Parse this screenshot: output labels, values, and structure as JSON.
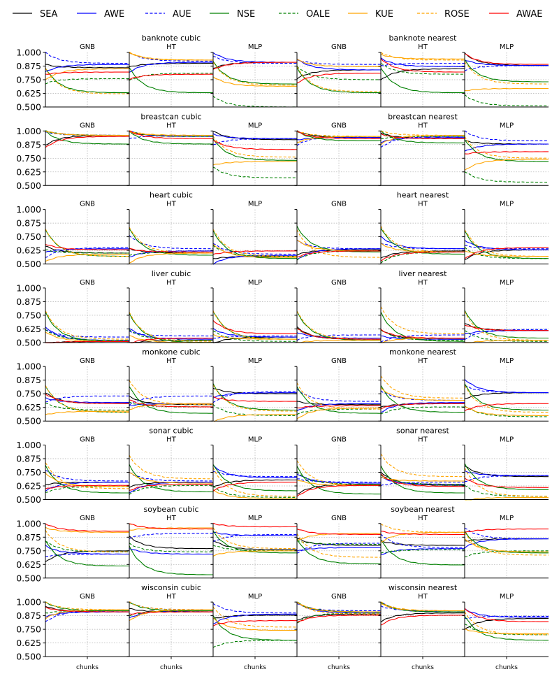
{
  "legend": [
    {
      "name": "SEA",
      "color": "#000000",
      "dash": false
    },
    {
      "name": "AWE",
      "color": "#0000ff",
      "dash": false
    },
    {
      "name": "AUE",
      "color": "#0000ff",
      "dash": true
    },
    {
      "name": "NSE",
      "color": "#008000",
      "dash": false
    },
    {
      "name": "OALE",
      "color": "#008000",
      "dash": true
    },
    {
      "name": "KUE",
      "color": "#ffa500",
      "dash": false
    },
    {
      "name": "ROSE",
      "color": "#ffa500",
      "dash": true
    },
    {
      "name": "AWAE",
      "color": "#ff0000",
      "dash": false
    }
  ],
  "chart_data": {
    "type": "line",
    "xlabel": "chunks",
    "ylim": [
      0.5,
      1.0
    ],
    "yticks": [
      "1.000",
      "0.875",
      "0.750",
      "0.625",
      "0.500"
    ],
    "classifiers": [
      "GNB",
      "HT",
      "MLP"
    ],
    "grid": true,
    "legend_position": "top",
    "groups": [
      {
        "title": "banknote cubic",
        "cells": [
          {
            "SEA": 0.86,
            "AWE": 0.89,
            "AUE": 0.9,
            "NSE": 0.63,
            "OALE": 0.76,
            "KUE": 0.85,
            "ROSE": 0.62,
            "AWAE": 0.82
          },
          {
            "SEA": 0.9,
            "AWE": 0.91,
            "AUE": 0.92,
            "NSE": 0.63,
            "OALE": 0.81,
            "KUE": 0.93,
            "ROSE": 0.93,
            "AWAE": 0.8
          },
          {
            "SEA": 0.91,
            "AWE": 0.91,
            "AUE": 0.9,
            "NSE": 0.71,
            "OALE": 0.5,
            "KUE": 0.69,
            "ROSE": 0.7,
            "AWAE": 0.91
          }
        ]
      },
      {
        "title": "banknote nearest",
        "cells": [
          {
            "SEA": 0.84,
            "AWE": 0.84,
            "AUE": 0.89,
            "NSE": 0.63,
            "OALE": 0.75,
            "KUE": 0.87,
            "ROSE": 0.64,
            "AWAE": 0.81
          },
          {
            "SEA": 0.85,
            "AWE": 0.87,
            "AUE": 0.9,
            "NSE": 0.63,
            "OALE": 0.8,
            "KUE": 0.94,
            "ROSE": 0.93,
            "AWAE": 0.82
          },
          {
            "SEA": 0.88,
            "AWE": 0.88,
            "AUE": 0.88,
            "NSE": 0.73,
            "OALE": 0.51,
            "KUE": 0.67,
            "ROSE": 0.71,
            "AWAE": 0.89
          }
        ]
      },
      {
        "title": "breastcan cubic",
        "cells": [
          {
            "SEA": 0.96,
            "AWE": 0.96,
            "AUE": 0.96,
            "NSE": 0.88,
            "OALE": 0.96,
            "KUE": 0.96,
            "ROSE": 0.96,
            "AWAE": 0.95
          },
          {
            "SEA": 0.95,
            "AWE": 0.95,
            "AUE": 0.96,
            "NSE": 0.88,
            "OALE": 0.95,
            "KUE": 0.96,
            "ROSE": 0.96,
            "AWAE": 0.93
          },
          {
            "SEA": 0.92,
            "AWE": 0.93,
            "AUE": 0.93,
            "NSE": 0.73,
            "OALE": 0.57,
            "KUE": 0.72,
            "ROSE": 0.76,
            "AWAE": 0.83
          }
        ]
      },
      {
        "title": "breastcan nearest",
        "cells": [
          {
            "SEA": 0.94,
            "AWE": 0.94,
            "AUE": 0.95,
            "NSE": 0.91,
            "OALE": 0.95,
            "KUE": 0.95,
            "ROSE": 0.95,
            "AWAE": 0.93
          },
          {
            "SEA": 0.93,
            "AWE": 0.94,
            "AUE": 0.95,
            "NSE": 0.89,
            "OALE": 0.95,
            "KUE": 0.96,
            "ROSE": 0.96,
            "AWAE": 0.93
          },
          {
            "SEA": 0.88,
            "AWE": 0.88,
            "AUE": 0.91,
            "NSE": 0.72,
            "OALE": 0.53,
            "KUE": 0.74,
            "ROSE": 0.75,
            "AWAE": 0.81
          }
        ]
      },
      {
        "title": "heart cubic",
        "cells": [
          {
            "SEA": 0.6,
            "AWE": 0.64,
            "AUE": 0.65,
            "NSE": 0.57,
            "OALE": 0.6,
            "KUE": 0.59,
            "ROSE": 0.57,
            "AWAE": 0.63
          },
          {
            "SEA": 0.6,
            "AWE": 0.62,
            "AUE": 0.64,
            "NSE": 0.58,
            "OALE": 0.61,
            "KUE": 0.6,
            "ROSE": 0.6,
            "AWAE": 0.61
          },
          {
            "SEA": 0.57,
            "AWE": 0.58,
            "AUE": 0.59,
            "NSE": 0.55,
            "OALE": 0.57,
            "KUE": 0.56,
            "ROSE": 0.57,
            "AWAE": 0.62
          }
        ]
      },
      {
        "title": "heart nearest",
        "cells": [
          {
            "SEA": 0.63,
            "AWE": 0.64,
            "AUE": 0.64,
            "NSE": 0.61,
            "OALE": 0.62,
            "KUE": 0.62,
            "ROSE": 0.56,
            "AWAE": 0.62
          },
          {
            "SEA": 0.62,
            "AWE": 0.64,
            "AUE": 0.64,
            "NSE": 0.59,
            "OALE": 0.61,
            "KUE": 0.61,
            "ROSE": 0.61,
            "AWAE": 0.61
          },
          {
            "SEA": 0.63,
            "AWE": 0.63,
            "AUE": 0.64,
            "NSE": 0.55,
            "OALE": 0.55,
            "KUE": 0.57,
            "ROSE": 0.57,
            "AWAE": 0.65
          }
        ]
      },
      {
        "title": "liver cubic",
        "cells": [
          {
            "SEA": 0.51,
            "AWE": 0.52,
            "AUE": 0.55,
            "NSE": 0.51,
            "OALE": 0.52,
            "KUE": 0.51,
            "ROSE": 0.53,
            "AWAE": 0.51
          },
          {
            "SEA": 0.52,
            "AWE": 0.53,
            "AUE": 0.56,
            "NSE": 0.5,
            "OALE": 0.52,
            "KUE": 0.5,
            "ROSE": 0.51,
            "AWAE": 0.54
          },
          {
            "SEA": 0.55,
            "AWE": 0.55,
            "AUE": 0.56,
            "NSE": 0.53,
            "OALE": 0.51,
            "KUE": 0.53,
            "ROSE": 0.53,
            "AWAE": 0.58
          }
        ]
      },
      {
        "title": "liver nearest",
        "cells": [
          {
            "SEA": 0.53,
            "AWE": 0.54,
            "AUE": 0.57,
            "NSE": 0.52,
            "OALE": 0.53,
            "KUE": 0.52,
            "ROSE": 0.53,
            "AWAE": 0.53
          },
          {
            "SEA": 0.53,
            "AWE": 0.53,
            "AUE": 0.57,
            "NSE": 0.51,
            "OALE": 0.52,
            "KUE": 0.54,
            "ROSE": 0.58,
            "AWAE": 0.54
          },
          {
            "SEA": 0.61,
            "AWE": 0.61,
            "AUE": 0.62,
            "NSE": 0.54,
            "OALE": 0.51,
            "KUE": 0.52,
            "ROSE": 0.52,
            "AWAE": 0.61
          }
        ]
      },
      {
        "title": "monkone cubic",
        "cells": [
          {
            "SEA": 0.66,
            "AWE": 0.67,
            "AUE": 0.73,
            "NSE": 0.58,
            "OALE": 0.6,
            "KUE": 0.59,
            "ROSE": 0.58,
            "AWAE": 0.66
          },
          {
            "SEA": 0.65,
            "AWE": 0.66,
            "AUE": 0.73,
            "NSE": 0.57,
            "OALE": 0.63,
            "KUE": 0.66,
            "ROSE": 0.65,
            "AWAE": 0.63
          },
          {
            "SEA": 0.75,
            "AWE": 0.76,
            "AUE": 0.77,
            "NSE": 0.6,
            "OALE": 0.55,
            "KUE": 0.56,
            "ROSE": 0.59,
            "AWAE": 0.68
          }
        ]
      },
      {
        "title": "monkone nearest",
        "cells": [
          {
            "SEA": 0.65,
            "AWE": 0.66,
            "AUE": 0.68,
            "NSE": 0.57,
            "OALE": 0.61,
            "KUE": 0.62,
            "ROSE": 0.61,
            "AWAE": 0.64
          },
          {
            "SEA": 0.66,
            "AWE": 0.67,
            "AUE": 0.69,
            "NSE": 0.58,
            "OALE": 0.63,
            "KUE": 0.69,
            "ROSE": 0.71,
            "AWAE": 0.66
          },
          {
            "SEA": 0.76,
            "AWE": 0.76,
            "AUE": 0.76,
            "NSE": 0.6,
            "OALE": 0.54,
            "KUE": 0.55,
            "ROSE": 0.58,
            "AWAE": 0.66
          }
        ]
      },
      {
        "title": "sonar cubic",
        "cells": [
          {
            "SEA": 0.66,
            "AWE": 0.66,
            "AUE": 0.67,
            "NSE": 0.56,
            "OALE": 0.62,
            "KUE": 0.62,
            "ROSE": 0.6,
            "AWAE": 0.63
          },
          {
            "SEA": 0.66,
            "AWE": 0.66,
            "AUE": 0.67,
            "NSE": 0.57,
            "OALE": 0.63,
            "KUE": 0.65,
            "ROSE": 0.69,
            "AWAE": 0.64
          },
          {
            "SEA": 0.68,
            "AWE": 0.7,
            "AUE": 0.71,
            "NSE": 0.58,
            "OALE": 0.52,
            "KUE": 0.51,
            "ROSE": 0.53,
            "AWAE": 0.66
          }
        ]
      },
      {
        "title": "sonar nearest",
        "cells": [
          {
            "SEA": 0.64,
            "AWE": 0.65,
            "AUE": 0.66,
            "NSE": 0.55,
            "OALE": 0.64,
            "KUE": 0.63,
            "ROSE": 0.63,
            "AWAE": 0.63
          },
          {
            "SEA": 0.63,
            "AWE": 0.64,
            "AUE": 0.66,
            "NSE": 0.56,
            "OALE": 0.64,
            "KUE": 0.67,
            "ROSE": 0.71,
            "AWAE": 0.62
          },
          {
            "SEA": 0.71,
            "AWE": 0.72,
            "AUE": 0.72,
            "NSE": 0.59,
            "OALE": 0.53,
            "KUE": 0.52,
            "ROSE": 0.53,
            "AWAE": 0.61
          }
        ]
      },
      {
        "title": "soybean cubic",
        "cells": [
          {
            "SEA": 0.75,
            "AWE": 0.72,
            "AUE": 0.72,
            "NSE": 0.61,
            "OALE": 0.74,
            "KUE": 0.92,
            "ROSE": 0.74,
            "AWAE": 0.93
          },
          {
            "SEA": 0.77,
            "AWE": 0.72,
            "AUE": 0.91,
            "NSE": 0.53,
            "OALE": 0.74,
            "KUE": 0.96,
            "ROSE": 0.95,
            "AWAE": 0.95
          },
          {
            "SEA": 0.76,
            "AWE": 0.89,
            "AUE": 0.9,
            "NSE": 0.73,
            "OALE": 0.75,
            "KUE": 0.75,
            "ROSE": 0.77,
            "AWAE": 0.97
          }
        ]
      },
      {
        "title": "soybean nearest",
        "cells": [
          {
            "SEA": 0.8,
            "AWE": 0.78,
            "AUE": 0.82,
            "NSE": 0.63,
            "OALE": 0.81,
            "KUE": 0.91,
            "ROSE": 0.69,
            "AWAE": 0.9
          },
          {
            "SEA": 0.8,
            "AWE": 0.77,
            "AUE": 0.78,
            "NSE": 0.62,
            "OALE": 0.76,
            "KUE": 0.92,
            "ROSE": 0.92,
            "AWAE": 0.9
          },
          {
            "SEA": 0.86,
            "AWE": 0.86,
            "AUE": 0.86,
            "NSE": 0.73,
            "OALE": 0.75,
            "KUE": 0.74,
            "ROSE": 0.71,
            "AWAE": 0.95
          }
        ]
      },
      {
        "title": "wisconsin cubic",
        "cells": [
          {
            "SEA": 0.91,
            "AWE": 0.91,
            "AUE": 0.92,
            "NSE": 0.92,
            "OALE": 0.92,
            "KUE": 0.93,
            "ROSE": 0.93,
            "AWAE": 0.91
          },
          {
            "SEA": 0.91,
            "AWE": 0.92,
            "AUE": 0.93,
            "NSE": 0.92,
            "OALE": 0.92,
            "KUE": 0.93,
            "ROSE": 0.93,
            "AWAE": 0.91
          },
          {
            "SEA": 0.88,
            "AWE": 0.89,
            "AUE": 0.9,
            "NSE": 0.65,
            "OALE": 0.65,
            "KUE": 0.74,
            "ROSE": 0.77,
            "AWAE": 0.83
          }
        ]
      },
      {
        "title": "wisconsin nearest",
        "cells": [
          {
            "SEA": 0.89,
            "AWE": 0.9,
            "AUE": 0.92,
            "NSE": 0.91,
            "OALE": 0.9,
            "KUE": 0.91,
            "ROSE": 0.89,
            "AWAE": 0.88
          },
          {
            "SEA": 0.9,
            "AWE": 0.91,
            "AUE": 0.92,
            "NSE": 0.91,
            "OALE": 0.91,
            "KUE": 0.92,
            "ROSE": 0.92,
            "AWAE": 0.88
          },
          {
            "SEA": 0.85,
            "AWE": 0.86,
            "AUE": 0.87,
            "NSE": 0.65,
            "OALE": 0.7,
            "KUE": 0.71,
            "ROSE": 0.7,
            "AWAE": 0.82
          }
        ]
      }
    ]
  }
}
